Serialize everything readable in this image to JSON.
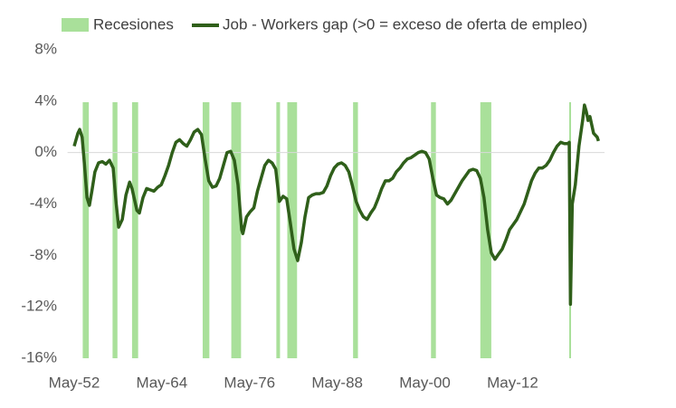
{
  "chart_data": {
    "type": "line",
    "x": [
      "May-52",
      "Nov-52",
      "Feb-53",
      "Jun-53",
      "Oct-53",
      "Feb-54",
      "Jun-54",
      "Oct-54",
      "Mar-55",
      "Sep-55",
      "Mar-56",
      "Sep-56",
      "Mar-57",
      "Sep-57",
      "Feb-58",
      "Jun-58",
      "Dec-58",
      "Jun-59",
      "Dec-59",
      "Apr-60",
      "Dec-60",
      "Apr-61",
      "Oct-61",
      "Apr-62",
      "Oct-62",
      "Apr-63",
      "Oct-63",
      "Apr-64",
      "Oct-64",
      "Apr-65",
      "Oct-65",
      "Apr-66",
      "Oct-66",
      "Apr-67",
      "Oct-67",
      "Apr-68",
      "Oct-68",
      "Apr-69",
      "Oct-69",
      "Apr-70",
      "Oct-70",
      "Apr-71",
      "Oct-71",
      "Apr-72",
      "Oct-72",
      "Apr-73",
      "Oct-73",
      "Apr-74",
      "Oct-74",
      "Apr-75",
      "Jun-75",
      "Dec-75",
      "Jun-76",
      "Dec-76",
      "Jun-77",
      "Dec-77",
      "Jun-78",
      "Dec-78",
      "Jun-79",
      "Dec-79",
      "Jun-80",
      "Dec-80",
      "Jun-81",
      "Dec-81",
      "Jun-82",
      "Dec-82",
      "Jun-83",
      "Dec-83",
      "Jun-84",
      "Dec-84",
      "Jun-85",
      "Dec-85",
      "Jun-86",
      "Dec-86",
      "Jun-87",
      "Dec-87",
      "Jun-88",
      "Dec-88",
      "Jun-89",
      "Dec-89",
      "Jun-90",
      "Dec-90",
      "Jun-91",
      "Dec-91",
      "Jun-92",
      "Dec-92",
      "Jun-93",
      "Dec-93",
      "Jun-94",
      "Dec-94",
      "Jun-95",
      "Dec-95",
      "Jun-96",
      "Dec-96",
      "Jun-97",
      "Dec-97",
      "Jun-98",
      "Dec-98",
      "Jun-99",
      "Dec-99",
      "Jun-00",
      "Dec-00",
      "Jun-01",
      "Dec-01",
      "Jun-02",
      "Dec-02",
      "Jun-03",
      "Dec-03",
      "Jun-04",
      "Dec-04",
      "Jun-05",
      "Dec-05",
      "Jun-06",
      "Dec-06",
      "Jun-07",
      "Dec-07",
      "Jun-08",
      "Dec-08",
      "Jun-09",
      "Dec-09",
      "Jun-10",
      "Dec-10",
      "Jun-11",
      "Dec-11",
      "Jun-12",
      "Dec-12",
      "Jun-13",
      "Dec-13",
      "Jun-14",
      "Dec-14",
      "Jun-15",
      "Dec-15",
      "Jun-16",
      "Dec-16",
      "Jun-17",
      "Dec-17",
      "Jun-18",
      "Dec-18",
      "Jun-19",
      "Dec-19",
      "Feb-20",
      "Apr-20",
      "Jul-20",
      "Dec-20",
      "Jun-21",
      "Dec-21",
      "Mar-22",
      "Jun-22",
      "Sep-22",
      "Dec-22",
      "Jun-23",
      "Dec-23",
      "Feb-24"
    ],
    "series": [
      {
        "name": "Job - Workers gap (>0 = exceso de oferta de empleo)",
        "color": "#2f5f1a",
        "values": [
          0.5,
          1.5,
          1.8,
          1.2,
          -1,
          -3.5,
          -4.1,
          -3,
          -1.5,
          -0.8,
          -0.7,
          -0.9,
          -0.6,
          -1.2,
          -4,
          -5.8,
          -5.2,
          -3.3,
          -2.3,
          -2.8,
          -4.5,
          -4.7,
          -3.5,
          -2.8,
          -2.9,
          -3,
          -2.7,
          -2.5,
          -1.8,
          -1,
          0,
          0.8,
          1,
          0.7,
          0.5,
          1,
          1.6,
          1.8,
          1.4,
          -0.5,
          -2.2,
          -2.7,
          -2.6,
          -2,
          -1,
          0,
          0.1,
          -0.6,
          -2.5,
          -6,
          -6.3,
          -5,
          -4.6,
          -4.3,
          -3,
          -2,
          -1,
          -0.6,
          -0.8,
          -1.3,
          -3.8,
          -3.4,
          -3.6,
          -5.5,
          -7.5,
          -8.4,
          -7,
          -5,
          -3.5,
          -3.3,
          -3.2,
          -3.2,
          -3.1,
          -2.6,
          -1.8,
          -1.2,
          -0.9,
          -0.8,
          -1,
          -1.5,
          -2.6,
          -3.8,
          -4.5,
          -5,
          -5.2,
          -4.7,
          -4.3,
          -3.6,
          -2.8,
          -2.2,
          -2.2,
          -2,
          -1.5,
          -1.2,
          -0.8,
          -0.5,
          -0.4,
          -0.2,
          0,
          0.1,
          0,
          -0.5,
          -2,
          -3.3,
          -3.5,
          -3.6,
          -4,
          -3.7,
          -3.2,
          -2.7,
          -2.2,
          -1.8,
          -1.4,
          -1.3,
          -1.4,
          -2,
          -3.5,
          -6,
          -7.8,
          -8.3,
          -7.9,
          -7.5,
          -6.8,
          -6,
          -5.6,
          -5.2,
          -4.6,
          -4,
          -3.1,
          -2.2,
          -1.6,
          -1.2,
          -1.2,
          -1,
          -0.6,
          0,
          0.5,
          0.8,
          0.7,
          0.7,
          0.8,
          -11.8,
          -4,
          -2.5,
          0.5,
          2.5,
          3.7,
          3.2,
          2.5,
          2.8,
          1.5,
          1.2,
          0.9
        ]
      }
    ],
    "recessions": {
      "name": "Recesiones",
      "color": "#a9e09a",
      "periods": [
        [
          "Jul-53",
          "May-54"
        ],
        [
          "Aug-57",
          "Apr-58"
        ],
        [
          "Apr-60",
          "Feb-61"
        ],
        [
          "Dec-69",
          "Nov-70"
        ],
        [
          "Nov-73",
          "Mar-75"
        ],
        [
          "Jan-80",
          "Jul-80"
        ],
        [
          "Jul-81",
          "Nov-82"
        ],
        [
          "Jul-90",
          "Mar-91"
        ],
        [
          "Mar-01",
          "Nov-01"
        ],
        [
          "Dec-07",
          "Jun-09"
        ],
        [
          "Feb-20",
          "Apr-20"
        ]
      ]
    },
    "xlim": [
      "Jun-51",
      "Jun-24"
    ],
    "xticks": [
      "May-52",
      "May-64",
      "May-76",
      "May-88",
      "May-00",
      "May-12"
    ],
    "ylim": [
      -16,
      8
    ],
    "yticks": [
      {
        "value": -16,
        "label": "-16%"
      },
      {
        "value": -12,
        "label": "-12%"
      },
      {
        "value": -8,
        "label": "-8%"
      },
      {
        "value": -4,
        "label": "-4%"
      },
      {
        "value": 0,
        "label": "0%"
      },
      {
        "value": 4,
        "label": "4%"
      },
      {
        "value": 8,
        "label": "8%"
      }
    ]
  }
}
